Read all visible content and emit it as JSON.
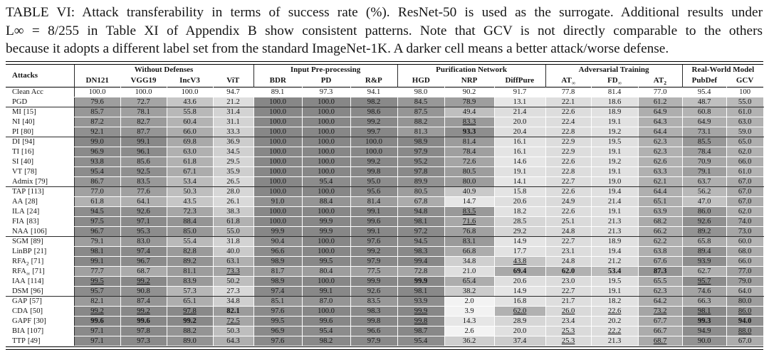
{
  "caption": {
    "lines": [
      "TABLE VI: Attack transferability in terms of success rate (%). ResNet-50 is used as the surrogate. Additional results under",
      "L∞ = 8/255 in Table XI of Appendix B show consistent patterns. Note that GCV is not directly comparable to the others",
      "because it adopts a different label set from the standard ImageNet-1K. A darker cell means a better attack/worse defense."
    ]
  },
  "table": {
    "row_header": "Attacks",
    "groups": [
      {
        "label": "Without Defenses",
        "cols": [
          {
            "label": "DN121",
            "sub": ""
          },
          {
            "label": "VGG19",
            "sub": ""
          },
          {
            "label": "IncV3",
            "sub": ""
          },
          {
            "label": "ViT",
            "sub": ""
          }
        ]
      },
      {
        "label": "Input Pre-processing",
        "cols": [
          {
            "label": "BDR",
            "sub": ""
          },
          {
            "label": "PD",
            "sub": ""
          },
          {
            "label": "R&P",
            "sub": ""
          }
        ]
      },
      {
        "label": "Purification Network",
        "cols": [
          {
            "label": "HGD",
            "sub": ""
          },
          {
            "label": "NRP",
            "sub": ""
          },
          {
            "label": "DiffPure",
            "sub": ""
          }
        ]
      },
      {
        "label": "Adversarial Training",
        "cols": [
          {
            "label": "AT",
            "sub": "∞"
          },
          {
            "label": "FD",
            "sub": "∞"
          },
          {
            "label": "AT",
            "sub": "2"
          }
        ]
      },
      {
        "label": "Real-World Model",
        "cols": [
          {
            "label": "PubDef",
            "sub": ""
          },
          {
            "label": "GCV",
            "sub": ""
          }
        ]
      }
    ],
    "section_breaks_after_rows": [
      1,
      4,
      9,
      14,
      20
    ],
    "rows": [
      {
        "name": "Clean Acc",
        "sub": "",
        "ref": "",
        "clean": true,
        "values": [
          "100.0",
          "100.0",
          "100.0",
          "94.7",
          "89.1",
          "97.3",
          "94.1",
          "98.0",
          "90.2",
          "91.7",
          "77.8",
          "81.4",
          "77.0",
          "95.4",
          "100"
        ],
        "bold": [],
        "underline": []
      },
      {
        "name": "PGD",
        "sub": "",
        "ref": "",
        "values": [
          "79.6",
          "72.7",
          "43.6",
          "21.2",
          "100.0",
          "100.0",
          "98.2",
          "84.5",
          "78.9",
          "13.1",
          "22.1",
          "18.6",
          "61.2",
          "48.7",
          "55.0"
        ],
        "bold": [],
        "underline": []
      },
      {
        "name": "MI",
        "sub": "",
        "ref": "[15]",
        "values": [
          "85.7",
          "78.1",
          "55.8",
          "31.4",
          "100.0",
          "100.0",
          "98.6",
          "87.5",
          "49.4",
          "21.4",
          "22.6",
          "18.9",
          "64.9",
          "60.8",
          "61.0"
        ],
        "bold": [],
        "underline": []
      },
      {
        "name": "NI",
        "sub": "",
        "ref": "[40]",
        "values": [
          "87.2",
          "82.7",
          "60.4",
          "31.1",
          "100.0",
          "100.0",
          "99.2",
          "88.2",
          "83.3",
          "20.0",
          "22.4",
          "19.1",
          "64.3",
          "64.9",
          "63.0"
        ],
        "bold": [],
        "underline": [
          8
        ]
      },
      {
        "name": "PI",
        "sub": "",
        "ref": "[80]",
        "values": [
          "92.1",
          "87.7",
          "66.0",
          "33.3",
          "100.0",
          "100.0",
          "99.7",
          "81.3",
          "93.3",
          "20.4",
          "22.8",
          "19.2",
          "64.4",
          "73.1",
          "59.0"
        ],
        "bold": [
          8
        ],
        "underline": []
      },
      {
        "name": "DI",
        "sub": "",
        "ref": "[94]",
        "values": [
          "99.0",
          "99.1",
          "69.8",
          "36.9",
          "100.0",
          "100.0",
          "100.0",
          "98.9",
          "81.4",
          "16.1",
          "22.9",
          "19.5",
          "62.3",
          "85.5",
          "65.0"
        ],
        "bold": [],
        "underline": []
      },
      {
        "name": "TI",
        "sub": "",
        "ref": "[16]",
        "values": [
          "96.9",
          "96.1",
          "63.0",
          "34.5",
          "100.0",
          "100.0",
          "100.0",
          "97.9",
          "78.4",
          "16.1",
          "22.9",
          "19.1",
          "62.3",
          "78.4",
          "62.0"
        ],
        "bold": [],
        "underline": []
      },
      {
        "name": "SI",
        "sub": "",
        "ref": "[40]",
        "values": [
          "93.8",
          "85.6",
          "61.8",
          "29.5",
          "100.0",
          "100.0",
          "99.2",
          "95.2",
          "72.6",
          "14.6",
          "22.6",
          "19.2",
          "62.6",
          "70.9",
          "66.0"
        ],
        "bold": [],
        "underline": []
      },
      {
        "name": "VT",
        "sub": "",
        "ref": "[78]",
        "values": [
          "95.4",
          "92.5",
          "67.1",
          "35.9",
          "100.0",
          "100.0",
          "99.8",
          "97.8",
          "80.5",
          "19.1",
          "22.8",
          "19.1",
          "63.3",
          "79.1",
          "61.0"
        ],
        "bold": [],
        "underline": []
      },
      {
        "name": "Admix",
        "sub": "",
        "ref": "[79]",
        "values": [
          "86.7",
          "83.5",
          "53.4",
          "26.5",
          "100.0",
          "95.4",
          "95.0",
          "89.9",
          "80.0",
          "14.1",
          "22.7",
          "19.0",
          "62.1",
          "63.7",
          "67.0"
        ],
        "bold": [],
        "underline": []
      },
      {
        "name": "TAP",
        "sub": "",
        "ref": "[113]",
        "values": [
          "77.0",
          "77.6",
          "50.3",
          "28.0",
          "100.0",
          "100.0",
          "95.6",
          "80.5",
          "40.9",
          "15.8",
          "22.6",
          "19.4",
          "64.4",
          "56.2",
          "67.0"
        ],
        "bold": [],
        "underline": []
      },
      {
        "name": "AA",
        "sub": "",
        "ref": "[28]",
        "values": [
          "61.8",
          "64.1",
          "43.5",
          "26.1",
          "91.0",
          "88.4",
          "81.4",
          "67.8",
          "14.7",
          "20.6",
          "24.9",
          "21.4",
          "65.1",
          "47.0",
          "67.0"
        ],
        "bold": [],
        "underline": []
      },
      {
        "name": "ILA",
        "sub": "",
        "ref": "[24]",
        "values": [
          "94.5",
          "92.6",
          "72.3",
          "38.3",
          "100.0",
          "100.0",
          "99.1",
          "94.8",
          "83.5",
          "18.2",
          "22.6",
          "19.1",
          "63.9",
          "86.0",
          "62.0"
        ],
        "bold": [],
        "underline": [
          8
        ]
      },
      {
        "name": "FIA",
        "sub": "",
        "ref": "[83]",
        "values": [
          "97.5",
          "97.1",
          "88.4",
          "61.8",
          "100.0",
          "99.9",
          "99.6",
          "98.1",
          "71.6",
          "28.5",
          "25.1",
          "21.3",
          "68.2",
          "92.6",
          "74.0"
        ],
        "bold": [],
        "underline": [
          8
        ]
      },
      {
        "name": "NAA",
        "sub": "",
        "ref": "[106]",
        "values": [
          "96.7",
          "95.3",
          "85.0",
          "55.0",
          "99.9",
          "99.9",
          "99.1",
          "97.2",
          "76.8",
          "29.2",
          "24.8",
          "21.3",
          "66.2",
          "89.2",
          "73.0"
        ],
        "bold": [],
        "underline": []
      },
      {
        "name": "SGM",
        "sub": "",
        "ref": "[89]",
        "values": [
          "79.1",
          "83.0",
          "55.4",
          "31.8",
          "90.4",
          "100.0",
          "97.6",
          "94.5",
          "83.1",
          "14.9",
          "22.7",
          "18.9",
          "62.2",
          "65.8",
          "60.0"
        ],
        "bold": [],
        "underline": []
      },
      {
        "name": "LinBP",
        "sub": "",
        "ref": "[21]",
        "values": [
          "98.1",
          "97.4",
          "82.8",
          "40.0",
          "96.6",
          "100.0",
          "99.2",
          "98.3",
          "66.8",
          "17.7",
          "23.1",
          "19.4",
          "63.8",
          "89.4",
          "68.0"
        ],
        "bold": [],
        "underline": []
      },
      {
        "name": "RFA",
        "sub": "2",
        "ref": "[71]",
        "values": [
          "99.1",
          "96.7",
          "89.2",
          "63.1",
          "98.9",
          "99.5",
          "97.9",
          "99.4",
          "34.8",
          "43.8",
          "24.8",
          "21.2",
          "67.6",
          "93.9",
          "66.0"
        ],
        "bold": [],
        "underline": [
          9
        ]
      },
      {
        "name": "RFA",
        "sub": "∞",
        "ref": "[71]",
        "values": [
          "77.7",
          "68.7",
          "81.1",
          "73.3",
          "81.7",
          "80.4",
          "77.5",
          "72.8",
          "21.0",
          "69.4",
          "62.0",
          "53.4",
          "87.3",
          "62.7",
          "77.0"
        ],
        "bold": [
          9,
          10,
          11,
          12
        ],
        "underline": [
          3
        ]
      },
      {
        "name": "IAA",
        "sub": "",
        "ref": "[114]",
        "values": [
          "99.5",
          "99.2",
          "83.9",
          "50.2",
          "98.9",
          "100.0",
          "99.9",
          "99.9",
          "65.4",
          "20.6",
          "23.0",
          "19.5",
          "65.5",
          "95.7",
          "79.0"
        ],
        "bold": [
          7
        ],
        "underline": [
          0,
          1,
          13
        ]
      },
      {
        "name": "DSM",
        "sub": "",
        "ref": "[96]",
        "values": [
          "95.7",
          "90.8",
          "57.3",
          "27.3",
          "97.4",
          "99.1",
          "92.6",
          "98.1",
          "38.2",
          "14.9",
          "22.7",
          "19.1",
          "62.3",
          "74.6",
          "64.0"
        ],
        "bold": [],
        "underline": []
      },
      {
        "name": "GAP",
        "sub": "",
        "ref": "[57]",
        "values": [
          "82.1",
          "87.4",
          "65.1",
          "34.8",
          "85.1",
          "87.0",
          "83.5",
          "93.9",
          "2.0",
          "16.8",
          "21.7",
          "18.2",
          "64.2",
          "66.3",
          "80.0"
        ],
        "bold": [],
        "underline": []
      },
      {
        "name": "CDA",
        "sub": "",
        "ref": "[50]",
        "values": [
          "99.2",
          "99.2",
          "97.8",
          "82.1",
          "97.6",
          "100.0",
          "98.3",
          "99.9",
          "3.9",
          "62.0",
          "26.0",
          "22.6",
          "73.2",
          "98.1",
          "86.0"
        ],
        "bold": [
          3
        ],
        "underline": [
          0,
          1,
          2,
          7,
          9,
          10,
          11,
          12,
          13,
          14
        ]
      },
      {
        "name": "GAPF",
        "sub": "",
        "ref": "[30]",
        "values": [
          "99.6",
          "99.6",
          "99.2",
          "72.5",
          "99.5",
          "99.6",
          "99.8",
          "99.8",
          "14.3",
          "28.9",
          "23.4",
          "20.2",
          "67.7",
          "99.3",
          "94.0"
        ],
        "bold": [
          0,
          1,
          2,
          13,
          14
        ],
        "underline": [
          3,
          7
        ]
      },
      {
        "name": "BIA",
        "sub": "",
        "ref": "[107]",
        "values": [
          "97.1",
          "97.8",
          "88.2",
          "50.3",
          "96.9",
          "95.4",
          "96.6",
          "98.7",
          "2.6",
          "20.0",
          "25.3",
          "22.2",
          "66.7",
          "94.9",
          "88.0"
        ],
        "bold": [],
        "underline": [
          10,
          11,
          14
        ]
      },
      {
        "name": "TTP",
        "sub": "",
        "ref": "[49]",
        "values": [
          "97.1",
          "97.3",
          "89.0",
          "64.3",
          "97.6",
          "98.2",
          "97.9",
          "95.4",
          "36.2",
          "37.4",
          "25.3",
          "21.3",
          "68.7",
          "90.0",
          "67.0"
        ],
        "bold": [],
        "underline": [
          10,
          12
        ]
      }
    ]
  }
}
